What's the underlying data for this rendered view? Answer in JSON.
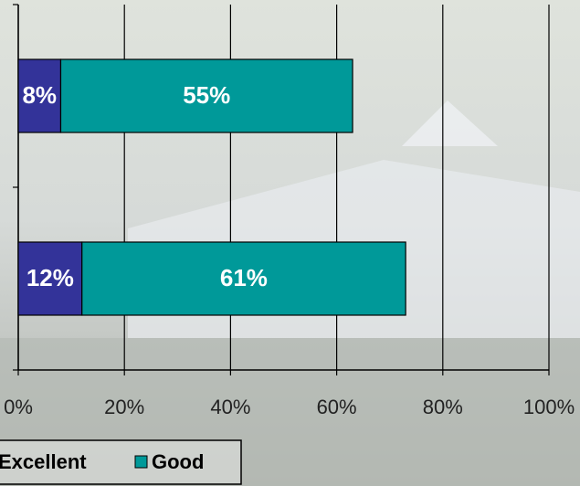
{
  "chart_data": {
    "type": "bar",
    "orientation": "horizontal",
    "stacked": true,
    "categories": [
      null,
      null
    ],
    "series": [
      {
        "name": "Excellent",
        "color": "#333399",
        "values": [
          8,
          12
        ],
        "value_labels": [
          "8%",
          "12%"
        ]
      },
      {
        "name": "Good",
        "color": "#009999",
        "values": [
          55,
          61
        ],
        "value_labels": [
          "55%",
          "61%"
        ]
      }
    ],
    "xlim": [
      0,
      100
    ],
    "xticks": [
      {
        "value": 0,
        "label": "0%"
      },
      {
        "value": 20,
        "label": "20%"
      },
      {
        "value": 40,
        "label": "40%"
      },
      {
        "value": 60,
        "label": "60%"
      },
      {
        "value": 80,
        "label": "80%"
      },
      {
        "value": 100,
        "label": "100%"
      }
    ],
    "grid": true
  }
}
